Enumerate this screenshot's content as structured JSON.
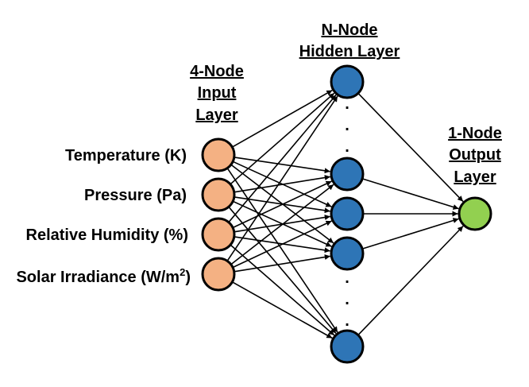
{
  "layers": {
    "input": {
      "header": [
        "4-Node",
        "Input",
        "Layer"
      ]
    },
    "hidden": {
      "header": [
        "N-Node",
        "Hidden Layer"
      ]
    },
    "output": {
      "header": [
        "1-Node",
        "Output",
        "Layer"
      ]
    }
  },
  "input_labels": {
    "temperature": "Temperature (K)",
    "pressure": "Pressure (Pa)",
    "humidity": "Relative Humidity (%)",
    "solar_base": "Solar Irradiance (W/m",
    "solar_sup": "2",
    "solar_close": ")"
  },
  "ellipsis_mark": ".",
  "colors": {
    "input_node": "#F4B183",
    "hidden_node": "#2E75B6",
    "output_node": "#92D050",
    "stroke": "#000000"
  }
}
